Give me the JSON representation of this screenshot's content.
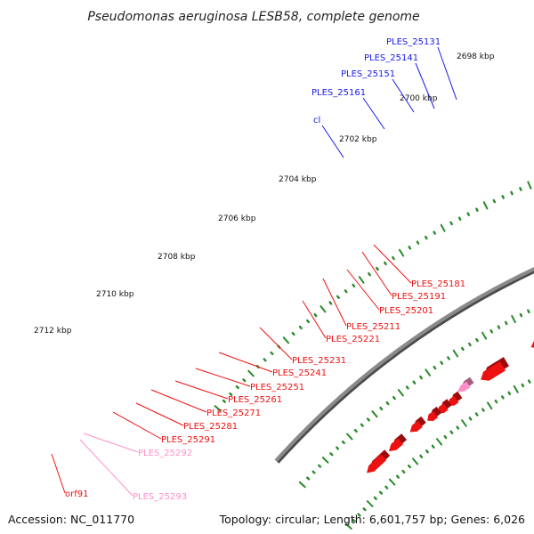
{
  "title": "Pseudomonas aeruginosa LESB58, complete genome",
  "footer": {
    "accession": "Accession: NC_011770",
    "topology": "Topology: circular; Length: 6,601,757 bp; Genes: 6,026"
  },
  "colors": {
    "forward_cds": "#1a1aee",
    "reverse_cds": "#ee1111",
    "rna": "#ee8800",
    "pseudo": "#ff8fc8",
    "other": "#ee22aa",
    "backbone": "#8a8a8a",
    "ticks": "#2a8a2a"
  },
  "kbp_labels": [
    "2698 kbp",
    "2700 kbp",
    "2702 kbp",
    "2704 kbp",
    "2706 kbp",
    "2708 kbp",
    "2710 kbp",
    "2712 kbp"
  ],
  "forward_labels": [
    "PLES_25131",
    "PLES_25141",
    "PLES_25151",
    "PLES_25161",
    "cl"
  ],
  "reverse_labels": [
    "PLES_25181",
    "PLES_25191",
    "PLES_25201",
    "PLES_25211",
    "PLES_25221",
    "PLES_25231",
    "PLES_25241",
    "PLES_25251",
    "PLES_25261",
    "PLES_25271",
    "PLES_25281",
    "PLES_25291",
    "orf91"
  ],
  "pseudo_labels": [
    "PLES_25292",
    "PLES_25293"
  ]
}
